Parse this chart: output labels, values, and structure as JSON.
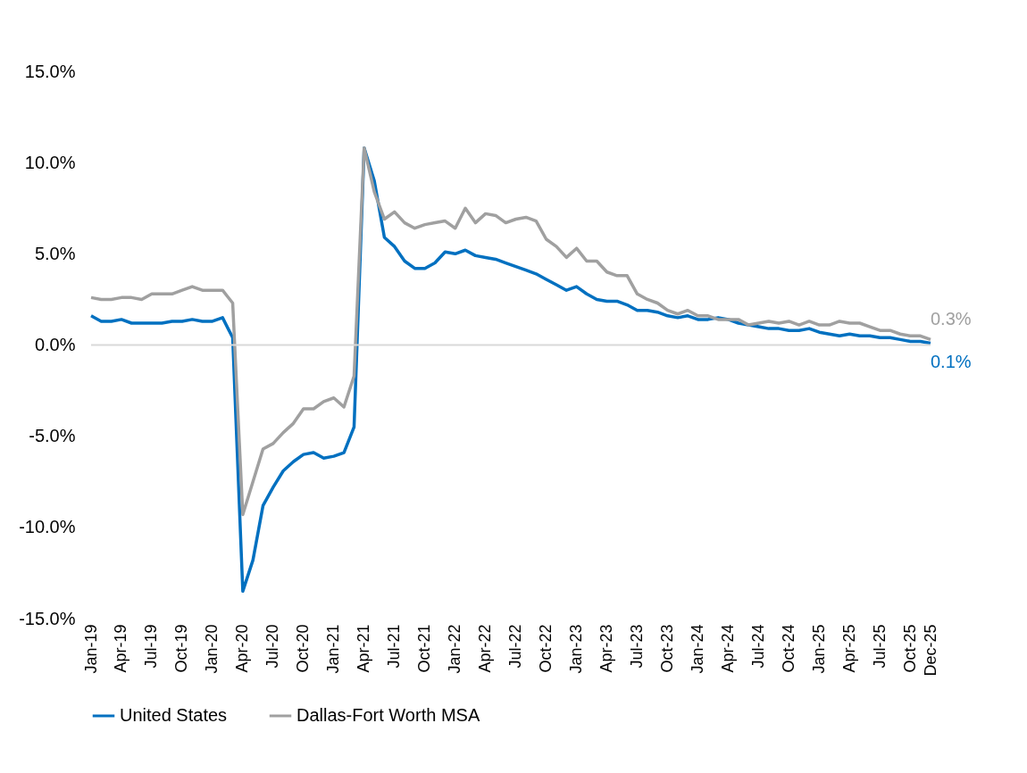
{
  "chart_data": {
    "type": "line",
    "categories": [
      "Jan-19",
      null,
      null,
      "Apr-19",
      null,
      null,
      "Jul-19",
      null,
      null,
      "Oct-19",
      null,
      null,
      "Jan-20",
      null,
      null,
      "Apr-20",
      null,
      null,
      "Jul-20",
      null,
      null,
      "Oct-20",
      null,
      null,
      "Jan-21",
      null,
      null,
      "Apr-21",
      null,
      null,
      "Jul-21",
      null,
      null,
      "Oct-21",
      null,
      null,
      "Jan-22",
      null,
      null,
      "Apr-22",
      null,
      null,
      "Jul-22",
      null,
      null,
      "Oct-22",
      null,
      null,
      "Jan-23",
      null,
      null,
      "Apr-23",
      null,
      null,
      "Jul-23",
      null,
      null,
      "Oct-23",
      null,
      null,
      "Jan-24",
      null,
      null,
      "Apr-24",
      null,
      null,
      "Jul-24",
      null,
      null,
      "Oct-24",
      null,
      null,
      "Jan-25",
      null,
      null,
      "Apr-25",
      null,
      null,
      "Jul-25",
      null,
      null,
      "Oct-25",
      null,
      "Dec-25"
    ],
    "series": [
      {
        "name": "United States",
        "color": "#0070c0",
        "values": [
          1.6,
          1.3,
          1.3,
          1.4,
          1.2,
          1.2,
          1.2,
          1.2,
          1.3,
          1.3,
          1.4,
          1.3,
          1.3,
          1.5,
          0.4,
          -13.5,
          -11.8,
          -8.8,
          -7.8,
          -6.9,
          -6.4,
          -6.0,
          -5.9,
          -6.2,
          -6.1,
          -5.9,
          -4.5,
          10.8,
          9.0,
          5.9,
          5.4,
          4.6,
          4.2,
          4.2,
          4.5,
          5.1,
          5.0,
          5.2,
          4.9,
          4.8,
          4.7,
          4.5,
          4.3,
          4.1,
          3.9,
          3.6,
          3.3,
          3.0,
          3.2,
          2.8,
          2.5,
          2.4,
          2.4,
          2.2,
          1.9,
          1.9,
          1.8,
          1.6,
          1.5,
          1.6,
          1.4,
          1.4,
          1.5,
          1.4,
          1.2,
          1.1,
          1.0,
          0.9,
          0.9,
          0.8,
          0.8,
          0.9,
          0.7,
          0.6,
          0.5,
          0.6,
          0.5,
          0.5,
          0.4,
          0.4,
          0.3,
          0.2,
          0.2,
          0.1
        ],
        "value_labels": [
          null,
          null,
          null,
          null,
          null,
          null,
          null,
          null,
          null,
          null,
          null,
          null,
          null,
          null,
          null,
          null,
          null,
          null,
          null,
          null,
          null,
          null,
          null,
          null,
          null,
          null,
          null,
          null,
          null,
          null,
          null,
          null,
          null,
          null,
          null,
          null,
          null,
          null,
          null,
          null,
          null,
          null,
          null,
          null,
          null,
          null,
          null,
          null,
          null,
          null,
          null,
          null,
          null,
          null,
          null,
          null,
          null,
          null,
          null,
          null,
          null,
          null,
          null,
          null,
          null,
          null,
          null,
          null,
          null,
          null,
          null,
          null,
          null,
          null,
          null,
          null,
          null,
          null,
          null,
          null,
          null,
          null,
          null,
          "0.1%"
        ]
      },
      {
        "name": "Dallas-Fort Worth MSA",
        "color": "#a0a0a0",
        "values": [
          2.6,
          2.5,
          2.5,
          2.6,
          2.6,
          2.5,
          2.8,
          2.8,
          2.8,
          3.0,
          3.2,
          3.0,
          3.0,
          3.0,
          2.3,
          -9.3,
          -7.5,
          -5.7,
          -5.4,
          -4.8,
          -4.3,
          -3.5,
          -3.5,
          -3.1,
          -2.9,
          -3.4,
          -1.7,
          10.8,
          8.4,
          6.9,
          7.3,
          6.7,
          6.4,
          6.6,
          6.7,
          6.8,
          6.4,
          7.5,
          6.7,
          7.2,
          7.1,
          6.7,
          6.9,
          7.0,
          6.8,
          5.8,
          5.4,
          4.8,
          5.3,
          4.6,
          4.6,
          4.0,
          3.8,
          3.8,
          2.8,
          2.5,
          2.3,
          1.9,
          1.7,
          1.9,
          1.6,
          1.6,
          1.4,
          1.4,
          1.4,
          1.1,
          1.2,
          1.3,
          1.2,
          1.3,
          1.1,
          1.3,
          1.1,
          1.1,
          1.3,
          1.2,
          1.2,
          1.0,
          0.8,
          0.8,
          0.6,
          0.5,
          0.5,
          0.3
        ],
        "value_labels": [
          null,
          null,
          null,
          null,
          null,
          null,
          null,
          null,
          null,
          null,
          null,
          null,
          null,
          null,
          null,
          null,
          null,
          null,
          null,
          null,
          null,
          null,
          null,
          null,
          null,
          null,
          null,
          null,
          null,
          null,
          null,
          null,
          null,
          null,
          null,
          null,
          null,
          null,
          null,
          null,
          null,
          null,
          null,
          null,
          null,
          null,
          null,
          null,
          null,
          null,
          null,
          null,
          null,
          null,
          null,
          null,
          null,
          null,
          null,
          null,
          null,
          null,
          null,
          null,
          null,
          null,
          null,
          null,
          null,
          null,
          null,
          null,
          null,
          null,
          null,
          null,
          null,
          null,
          null,
          null,
          null,
          null,
          null,
          "0.3%"
        ]
      }
    ],
    "ylim": [
      -15,
      15
    ],
    "yticks": [
      {
        "value": -15,
        "label": "-15.0%"
      },
      {
        "value": -10,
        "label": "-10.0%"
      },
      {
        "value": -5,
        "label": "-5.0%"
      },
      {
        "value": 0,
        "label": "0.0%"
      },
      {
        "value": 5,
        "label": "5.0%"
      },
      {
        "value": 10,
        "label": "10.0%"
      },
      {
        "value": 15,
        "label": "15.0%"
      }
    ],
    "ref_lines": [
      {
        "axis": "y",
        "value": 0,
        "color": "#d9d9d9"
      }
    ],
    "grid": false,
    "legend": "bottom",
    "marker": "none",
    "line_style": "solid"
  }
}
